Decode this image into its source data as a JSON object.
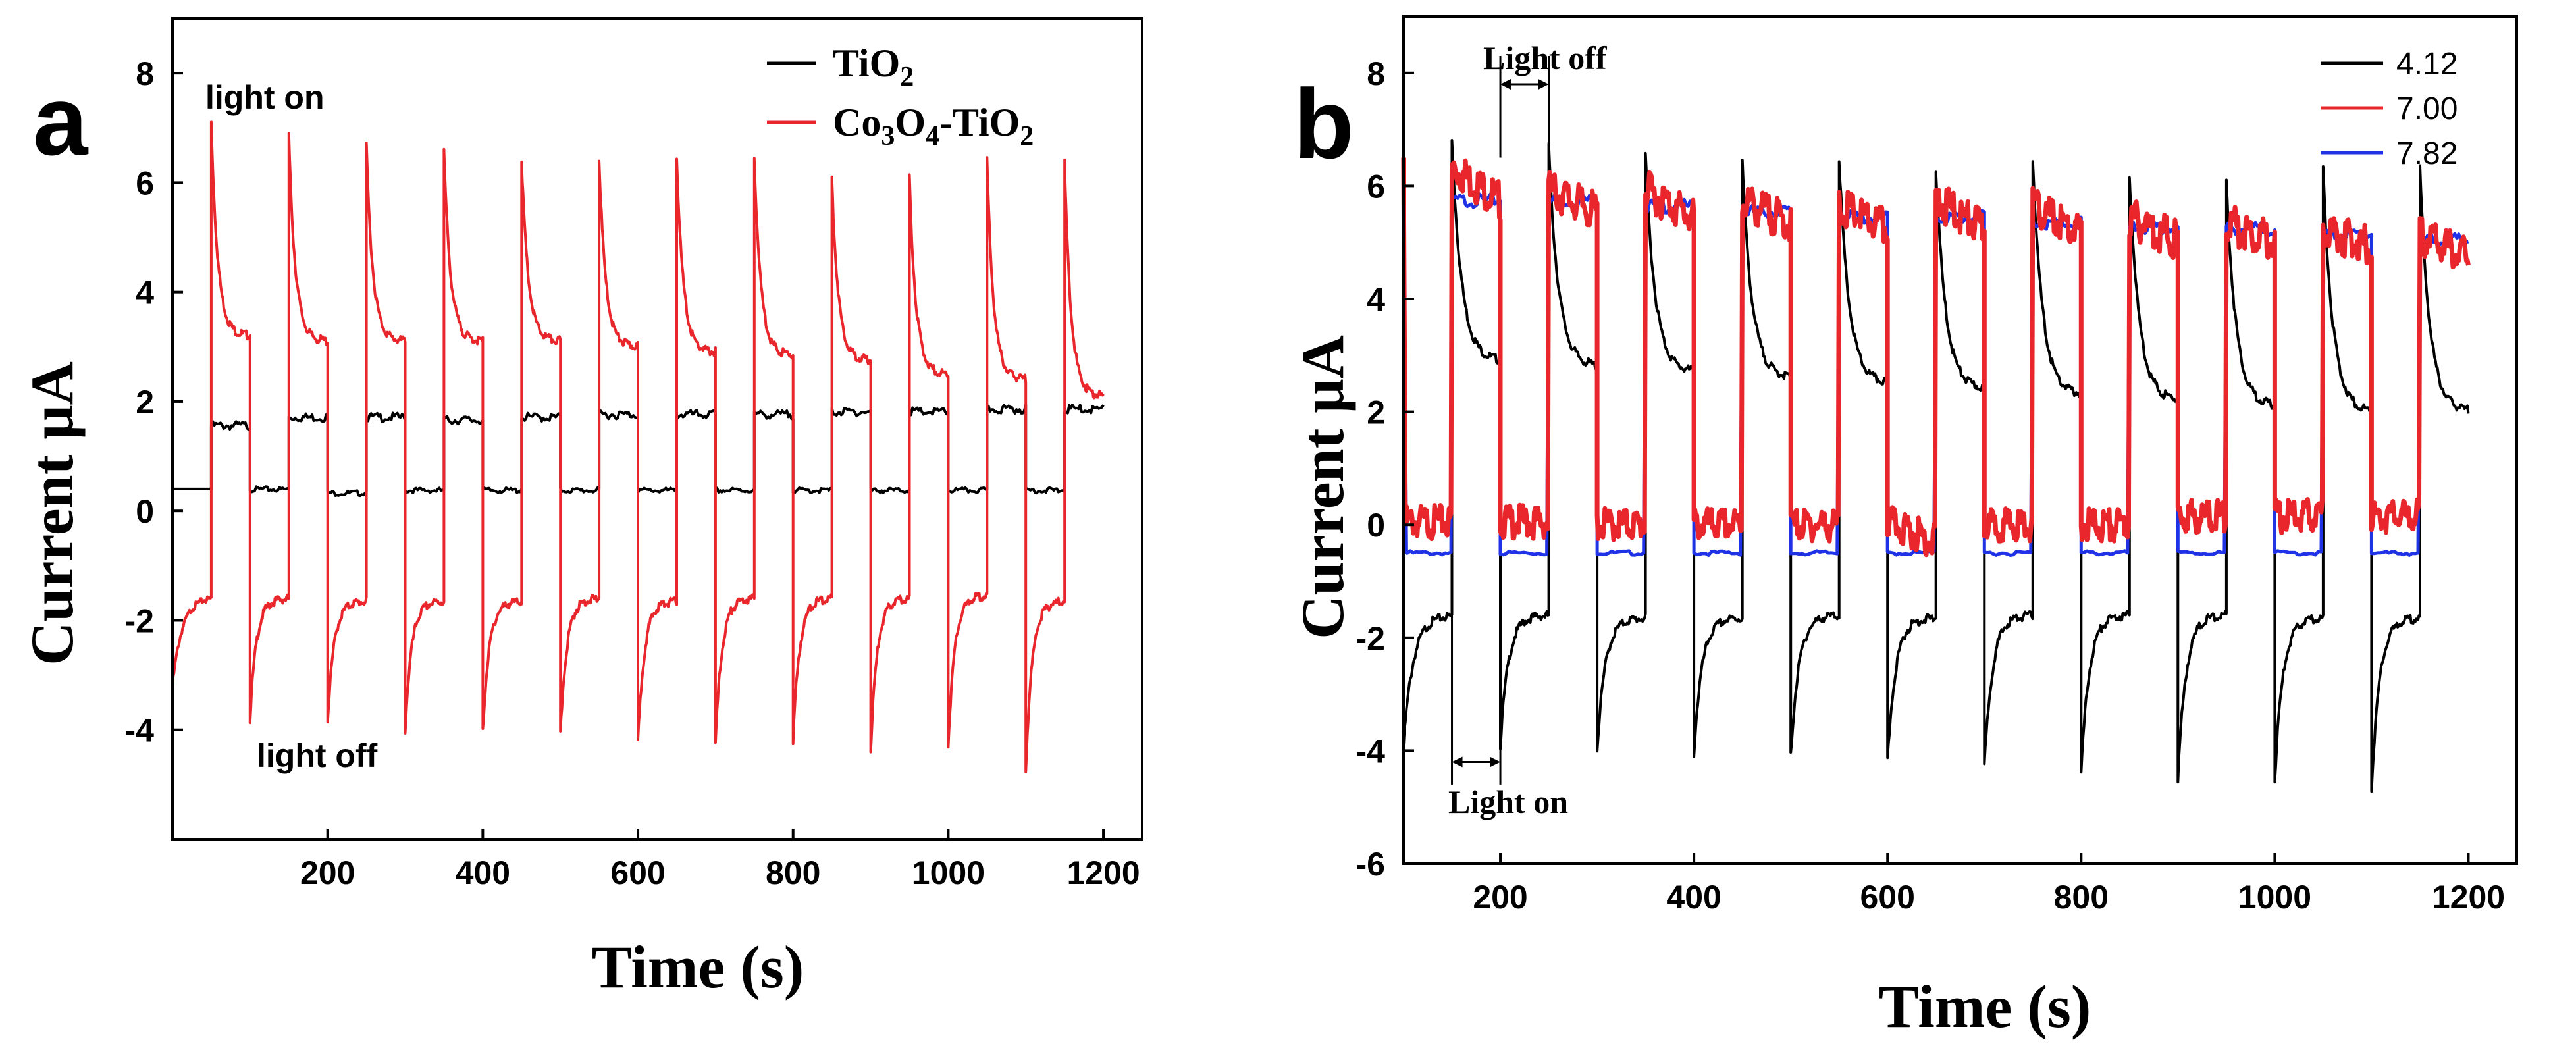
{
  "chart_data": [
    {
      "panel_label": "a",
      "type": "line",
      "xlabel": "Time  (s)",
      "ylabel": "Current μA",
      "xlim": [
        0,
        1250
      ],
      "ylim": [
        -6,
        9
      ],
      "x_ticks": [
        200,
        400,
        600,
        800,
        1000,
        1200
      ],
      "y_ticks": [
        -4,
        -2,
        0,
        2,
        4,
        6,
        8
      ],
      "period_s": 100,
      "light_on_s": [
        50,
        150,
        250,
        350,
        450,
        550,
        650,
        750,
        850,
        950,
        1050,
        1150
      ],
      "light_off_s": [
        100,
        200,
        300,
        400,
        500,
        600,
        700,
        800,
        900,
        1000,
        1100
      ],
      "annotations": [
        "light on",
        "light off"
      ],
      "series": [
        {
          "name": "TiO2",
          "legend_base": "TiO",
          "legend_sub": "2",
          "color": "#000000",
          "x_range": [
            0,
            1200
          ],
          "on_current": [
            1.6,
            1.75,
            1.75,
            1.7,
            1.75,
            1.8,
            1.8,
            1.8,
            1.85,
            1.85,
            1.9,
            1.9
          ],
          "off_current": [
            0.4,
            0.42,
            0.35,
            0.4,
            0.4,
            0.4,
            0.4,
            0.4,
            0.4,
            0.4,
            0.4,
            0.4
          ]
        },
        {
          "name": "Co3O4-TiO2",
          "legend_parts": [
            "Co",
            "3",
            "O",
            "4",
            "-TiO",
            "2"
          ],
          "color": "#e8262b",
          "x_range": [
            0,
            1200
          ],
          "on_peak": [
            7.1,
            6.85,
            6.65,
            6.55,
            6.45,
            6.45,
            6.5,
            6.5,
            6.1,
            6.1,
            6.4,
            6.35
          ],
          "on_end": [
            3.2,
            3.1,
            3.1,
            3.1,
            3.1,
            3.0,
            2.9,
            2.85,
            2.75,
            2.5,
            2.4,
            2.1
          ],
          "off_min": [
            -3.8,
            -3.85,
            -4.0,
            -4.05,
            -4.1,
            -4.25,
            -4.25,
            -4.2,
            -4.4,
            -4.3,
            -4.7
          ],
          "off_end": [
            -1.6,
            -1.65,
            -1.65,
            -1.65,
            -1.6,
            -1.65,
            -1.6,
            -1.6,
            -1.6,
            -1.55,
            -1.65
          ],
          "initial_value": -3.2
        }
      ]
    },
    {
      "panel_label": "b",
      "type": "line",
      "xlabel": "Time  (s)",
      "ylabel": "Current μA",
      "xlim": [
        100,
        1250
      ],
      "ylim": [
        -6,
        9
      ],
      "x_ticks": [
        200,
        400,
        600,
        800,
        1000,
        1200
      ],
      "y_ticks": [
        -6,
        -4,
        -2,
        0,
        2,
        4,
        6,
        8
      ],
      "period_s": 100,
      "light_on_s": [
        150,
        250,
        350,
        450,
        550,
        650,
        750,
        850,
        950,
        1050,
        1150
      ],
      "light_off_s": [
        100,
        200,
        300,
        400,
        500,
        600,
        700,
        800,
        900,
        1000,
        1100
      ],
      "annotations": [
        "Light off",
        "Light on"
      ],
      "series": [
        {
          "name": "4.12",
          "color": "#000000",
          "x_range": [
            100,
            1200
          ],
          "on_peak": [
            6.8,
            6.7,
            6.5,
            6.4,
            6.5,
            6.3,
            6.5,
            6.2,
            6.1,
            6.3,
            6.3
          ],
          "on_end": [
            2.9,
            2.8,
            2.7,
            2.6,
            2.5,
            2.4,
            2.3,
            2.2,
            2.1,
            2.0,
            2.0
          ],
          "off_min": [
            -3.9,
            -3.9,
            -4.0,
            -4.05,
            -4.1,
            -4.2,
            -4.3,
            -4.4,
            -4.5,
            -4.55,
            -4.7
          ],
          "off_end": [
            -1.6,
            -1.6,
            -1.65,
            -1.65,
            -1.6,
            -1.65,
            -1.6,
            -1.6,
            -1.6,
            -1.65,
            -1.65
          ]
        },
        {
          "name": "7.00",
          "color": "#e8262b",
          "x_range": [
            100,
            1200
          ],
          "on_start": [
            6.5,
            6.1,
            6.1,
            5.9,
            5.8,
            5.9,
            5.8,
            5.6,
            5.5,
            5.4,
            5.3
          ],
          "on_end": [
            5.9,
            5.7,
            5.6,
            5.5,
            5.4,
            5.4,
            5.3,
            5.2,
            5.2,
            5.1,
            4.9
          ],
          "off_current": [
            0.2,
            0.2,
            0.15,
            0.15,
            0.15,
            0.0,
            0.15,
            0.15,
            0.3,
            0.3,
            0.3
          ]
        },
        {
          "name": "7.82",
          "color": "#1f32e6",
          "x_range": [
            100,
            1200
          ],
          "on_current": [
            5.8,
            5.8,
            5.7,
            5.6,
            5.5,
            5.5,
            5.4,
            5.3,
            5.3,
            5.2,
            5.1
          ],
          "off_current": [
            -0.5,
            -0.5,
            -0.5,
            -0.5,
            -0.5,
            -0.5,
            -0.5,
            -0.5,
            -0.5,
            -0.5,
            -0.5
          ]
        }
      ]
    }
  ]
}
